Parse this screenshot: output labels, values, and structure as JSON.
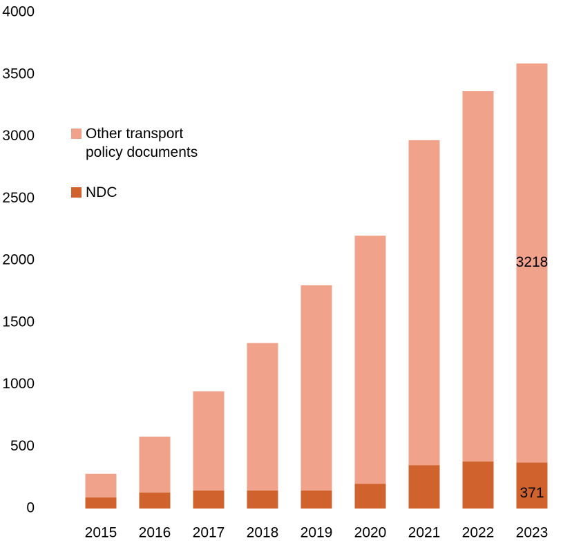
{
  "chart_data": {
    "type": "stacked_bar",
    "categories": [
      "2015",
      "2016",
      "2017",
      "2018",
      "2019",
      "2020",
      "2021",
      "2022",
      "2023"
    ],
    "series": [
      {
        "name": "NDC",
        "color": "#d0622e",
        "values": [
          90,
          130,
          145,
          145,
          145,
          200,
          350,
          380,
          371
        ],
        "value_labels": [
          null,
          null,
          null,
          null,
          null,
          null,
          null,
          null,
          "371"
        ]
      },
      {
        "name": "Other transport policy documents",
        "color": "#f0a28a",
        "values": [
          190,
          450,
          800,
          1190,
          1655,
          2000,
          2620,
          2985,
          3218
        ],
        "value_labels": [
          null,
          null,
          null,
          null,
          null,
          null,
          null,
          null,
          "3218"
        ]
      }
    ],
    "ylim": [
      0,
      4000
    ],
    "yticks": [
      0,
      500,
      1000,
      1500,
      2000,
      2500,
      3000,
      3500,
      4000
    ],
    "grid": false
  }
}
